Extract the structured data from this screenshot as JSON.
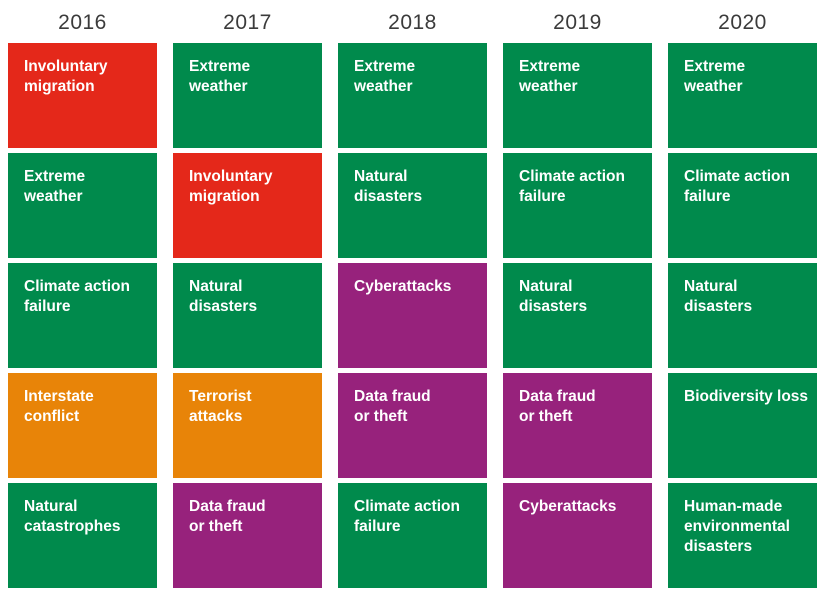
{
  "palette": {
    "green": "#008a4c",
    "red": "#e4281a",
    "orange": "#e88408",
    "purple": "#97227c",
    "header_text": "#3b3b3b",
    "tile_text": "#ffffff",
    "background": "#ffffff"
  },
  "chart_data": {
    "type": "table",
    "title": "",
    "categories": [
      "2016",
      "2017",
      "2018",
      "2019",
      "2020"
    ],
    "legend_position": "none",
    "columns": [
      {
        "year": "2016",
        "risks": [
          {
            "label": "Involuntary\nmigration",
            "color": "red"
          },
          {
            "label": "Extreme\nweather",
            "color": "green"
          },
          {
            "label": "Climate action\nfailure",
            "color": "green"
          },
          {
            "label": "Interstate\nconflict",
            "color": "orange"
          },
          {
            "label": "Natural\ncatastrophes",
            "color": "green"
          }
        ]
      },
      {
        "year": "2017",
        "risks": [
          {
            "label": "Extreme\nweather",
            "color": "green"
          },
          {
            "label": "Involuntary\nmigration",
            "color": "red"
          },
          {
            "label": "Natural\ndisasters",
            "color": "green"
          },
          {
            "label": "Terrorist\nattacks",
            "color": "orange"
          },
          {
            "label": "Data fraud\nor theft",
            "color": "purple"
          }
        ]
      },
      {
        "year": "2018",
        "risks": [
          {
            "label": "Extreme\nweather",
            "color": "green"
          },
          {
            "label": "Natural\ndisasters",
            "color": "green"
          },
          {
            "label": "Cyberattacks",
            "color": "purple"
          },
          {
            "label": "Data fraud\nor theft",
            "color": "purple"
          },
          {
            "label": "Climate action\nfailure",
            "color": "green"
          }
        ]
      },
      {
        "year": "2019",
        "risks": [
          {
            "label": "Extreme\nweather",
            "color": "green"
          },
          {
            "label": "Climate action\nfailure",
            "color": "green"
          },
          {
            "label": "Natural\ndisasters",
            "color": "green"
          },
          {
            "label": "Data fraud\nor theft",
            "color": "purple"
          },
          {
            "label": "Cyberattacks",
            "color": "purple"
          }
        ]
      },
      {
        "year": "2020",
        "risks": [
          {
            "label": "Extreme\nweather",
            "color": "green"
          },
          {
            "label": "Climate action\nfailure",
            "color": "green"
          },
          {
            "label": "Natural\ndisasters",
            "color": "green"
          },
          {
            "label": "Biodiversity loss",
            "color": "green"
          },
          {
            "label": "Human-made\nenvironmental\ndisasters",
            "color": "green"
          }
        ]
      }
    ]
  }
}
